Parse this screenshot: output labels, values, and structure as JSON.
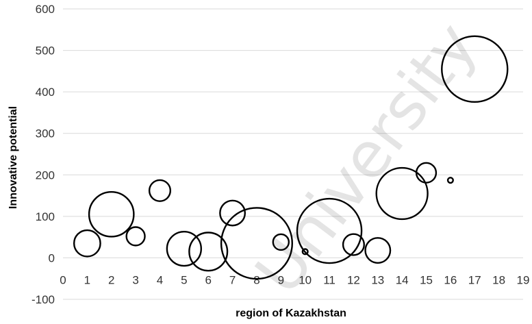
{
  "chart_data": {
    "type": "bubble",
    "title": "",
    "xlabel": "region of Kazakhstan",
    "ylabel": "Innovative potential",
    "xlim": [
      0,
      19
    ],
    "ylim": [
      -100,
      600
    ],
    "xticks": [
      "0",
      "1",
      "2",
      "3",
      "4",
      "5",
      "6",
      "7",
      "8",
      "9",
      "10",
      "11",
      "12",
      "13",
      "14",
      "15",
      "16",
      "17",
      "18",
      "19"
    ],
    "yticks": [
      "-100",
      "0",
      "100",
      "200",
      "300",
      "400",
      "500",
      "600"
    ],
    "grid": "horizontal",
    "legend": "none",
    "colors": {
      "bubble_stroke": "#000000",
      "grid": "#d9d9d9"
    },
    "points": [
      {
        "x": 1,
        "y": 35,
        "size": 20
      },
      {
        "x": 2,
        "y": 105,
        "size": 34
      },
      {
        "x": 3,
        "y": 52,
        "size": 14
      },
      {
        "x": 4,
        "y": 162,
        "size": 16
      },
      {
        "x": 5,
        "y": 22,
        "size": 26
      },
      {
        "x": 6,
        "y": 15,
        "size": 29
      },
      {
        "x": 7,
        "y": 108,
        "size": 19
      },
      {
        "x": 8,
        "y": 35,
        "size": 54
      },
      {
        "x": 9,
        "y": 38,
        "size": 12
      },
      {
        "x": 10,
        "y": 15,
        "size": 4
      },
      {
        "x": 11,
        "y": 65,
        "size": 49
      },
      {
        "x": 12,
        "y": 32,
        "size": 16
      },
      {
        "x": 13,
        "y": 18,
        "size": 19
      },
      {
        "x": 14,
        "y": 155,
        "size": 39
      },
      {
        "x": 15,
        "y": 205,
        "size": 15
      },
      {
        "x": 16,
        "y": 187,
        "size": 4
      },
      {
        "x": 17,
        "y": 455,
        "size": 50
      }
    ]
  },
  "watermark": {
    "text": "University"
  }
}
